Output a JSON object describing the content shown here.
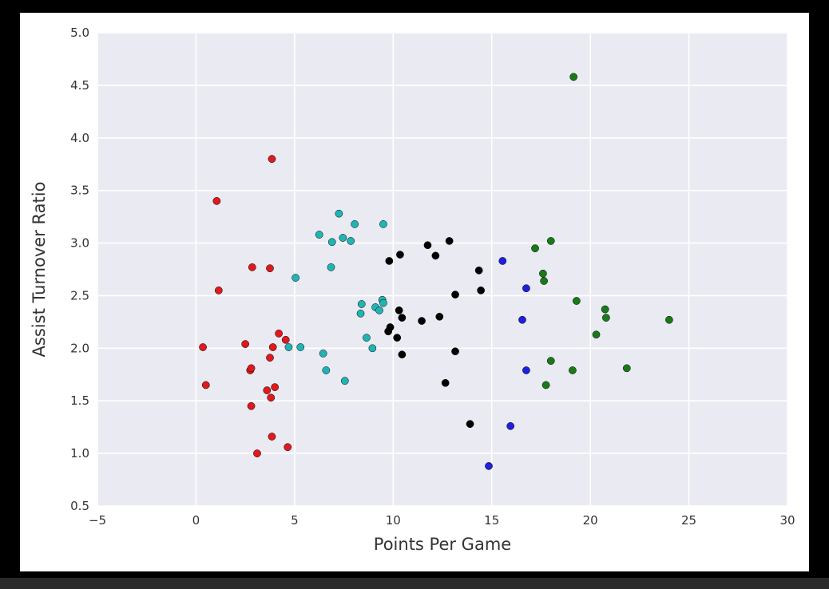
{
  "colors": {
    "background": "#000000",
    "figure": "#ffffff",
    "plot_area": "#eaeaf2",
    "grid": "#ffffff",
    "text": "#333333"
  },
  "chart_data": {
    "type": "scatter",
    "title": "",
    "xlabel": "Points Per Game",
    "ylabel": "Assist Turnover Ratio",
    "xlim": [
      -5,
      30
    ],
    "ylim": [
      0.5,
      5.0
    ],
    "xticks": [
      -5,
      0,
      5,
      10,
      15,
      20,
      25,
      30
    ],
    "yticks": [
      0.5,
      1.0,
      1.5,
      2.0,
      2.5,
      3.0,
      3.5,
      4.0,
      4.5,
      5.0
    ],
    "xtick_labels": [
      "−5",
      "0",
      "5",
      "10",
      "15",
      "20",
      "25",
      "30"
    ],
    "ytick_labels": [
      "0.5",
      "1.0",
      "1.5",
      "2.0",
      "2.5",
      "3.0",
      "3.5",
      "4.0",
      "4.5",
      "5.0"
    ],
    "grid": true,
    "legend": "none",
    "series": [
      {
        "color": "#e0191c",
        "x": [
          3.85,
          1.05,
          1.15,
          2.85,
          3.75,
          0.35,
          2.5,
          2.75,
          2.8,
          0.5,
          4.2,
          4.55,
          3.9,
          3.75,
          3.6,
          4.0,
          3.8,
          2.8,
          3.85,
          3.1,
          4.65
        ],
        "y": [
          3.8,
          3.4,
          2.55,
          2.77,
          2.76,
          2.01,
          2.04,
          1.79,
          1.81,
          1.65,
          2.14,
          2.08,
          2.01,
          1.91,
          1.6,
          1.63,
          1.53,
          1.45,
          1.16,
          1.0,
          1.06
        ]
      },
      {
        "color": "#20b4b4",
        "x": [
          7.25,
          8.05,
          9.5,
          6.25,
          7.45,
          6.9,
          7.85,
          6.85,
          5.05,
          8.4,
          9.45,
          9.5,
          9.1,
          9.3,
          8.35,
          8.65,
          4.7,
          5.3,
          6.45,
          8.95,
          6.6,
          7.55
        ],
        "y": [
          3.28,
          3.18,
          3.18,
          3.08,
          3.05,
          3.01,
          3.02,
          2.77,
          2.67,
          2.42,
          2.46,
          2.43,
          2.39,
          2.36,
          2.33,
          2.1,
          2.01,
          2.01,
          1.95,
          2.0,
          1.79,
          1.69
        ]
      },
      {
        "color": "#000000",
        "x": [
          12.85,
          11.75,
          10.35,
          12.15,
          9.8,
          14.35,
          14.45,
          13.15,
          10.3,
          10.45,
          12.35,
          11.45,
          9.85,
          9.75,
          10.2,
          10.45,
          13.15,
          12.65,
          13.9
        ],
        "y": [
          3.02,
          2.98,
          2.89,
          2.88,
          2.83,
          2.74,
          2.55,
          2.51,
          2.36,
          2.29,
          2.3,
          2.26,
          2.2,
          2.16,
          2.1,
          1.94,
          1.97,
          1.67,
          1.28
        ]
      },
      {
        "color": "#1f1fe0",
        "x": [
          15.55,
          16.75,
          16.55,
          16.75,
          15.95,
          14.85
        ],
        "y": [
          2.83,
          2.57,
          2.27,
          1.79,
          1.26,
          0.88
        ]
      },
      {
        "color": "#197a19",
        "x": [
          19.15,
          18.0,
          17.2,
          17.6,
          17.65,
          19.3,
          20.75,
          20.8,
          24.0,
          20.3,
          18.0,
          17.75,
          19.1,
          21.85
        ],
        "y": [
          4.58,
          3.02,
          2.95,
          2.71,
          2.64,
          2.45,
          2.37,
          2.29,
          2.27,
          2.13,
          1.88,
          1.65,
          1.79,
          1.81
        ]
      }
    ]
  }
}
